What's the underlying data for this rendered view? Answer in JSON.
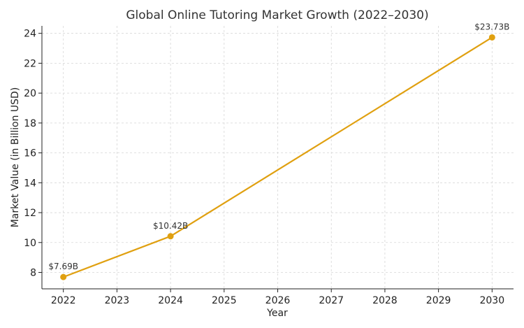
{
  "chart_data": {
    "type": "line",
    "title": "Global Online Tutoring Market Growth (2022–2030)",
    "xlabel": "Year",
    "ylabel": "Market Value (in Billion USD)",
    "xlim": [
      2021.6,
      2030.4
    ],
    "ylim": [
      6.9,
      24.5
    ],
    "x_ticks": [
      "2022",
      "2023",
      "2024",
      "2025",
      "2026",
      "2027",
      "2028",
      "2029",
      "2030"
    ],
    "y_ticks": [
      "8",
      "10",
      "12",
      "14",
      "16",
      "18",
      "20",
      "22",
      "24"
    ],
    "grid": true,
    "series": [
      {
        "color": "#e0a010",
        "points": [
          {
            "x": 2022,
            "y": 7.69,
            "label": "$7.69B"
          },
          {
            "x": 2024,
            "y": 10.42,
            "label": "$10.42B"
          },
          {
            "x": 2030,
            "y": 23.73,
            "label": "$23.73B"
          }
        ]
      }
    ]
  }
}
